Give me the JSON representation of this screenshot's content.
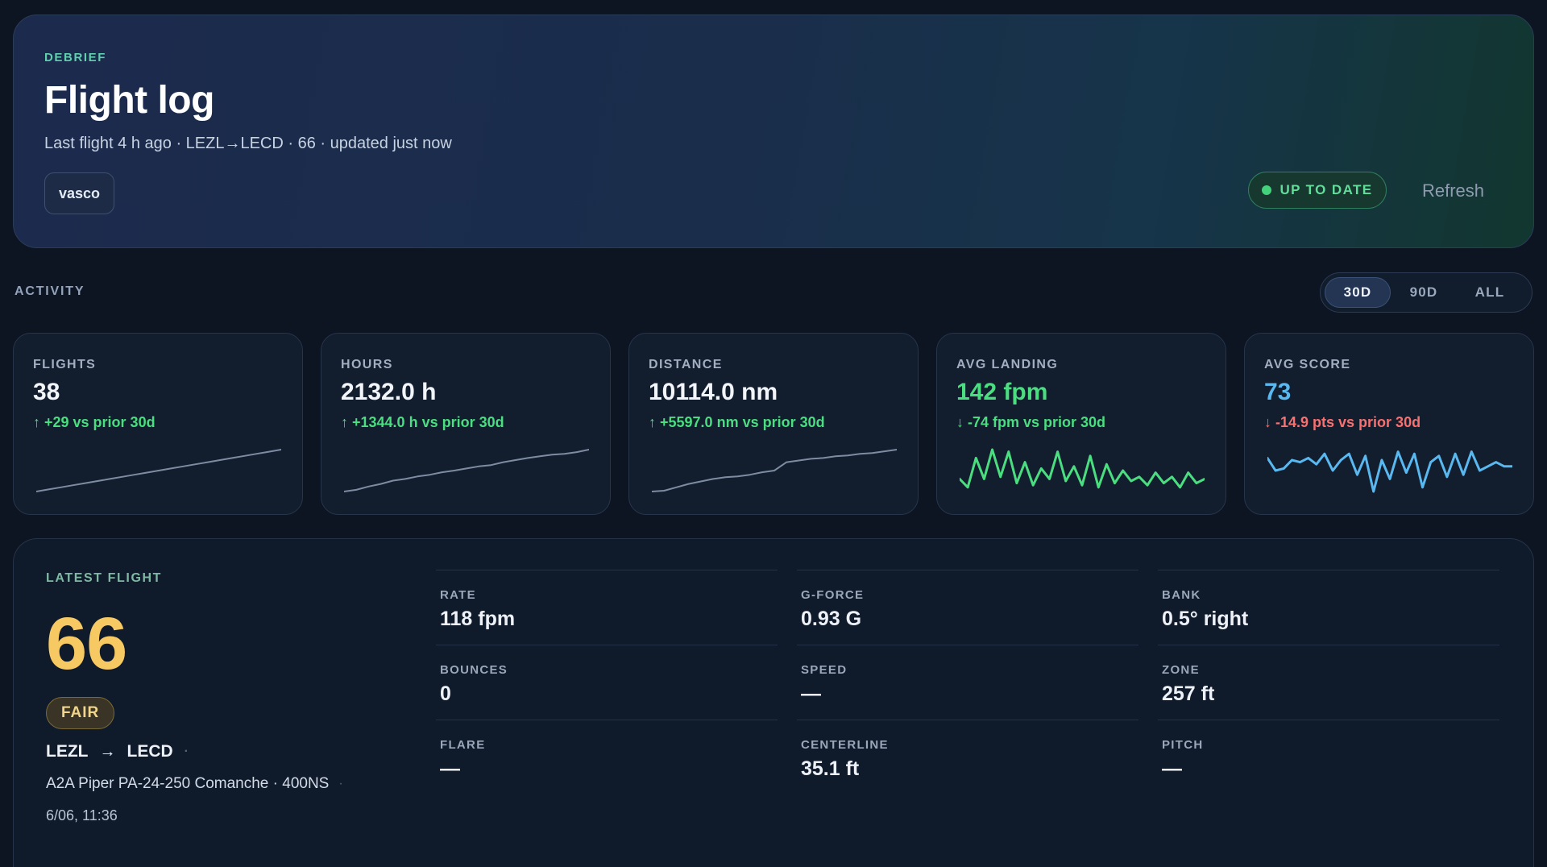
{
  "header": {
    "eyebrow": "DEBRIEF",
    "title": "Flight log",
    "subtitle": "Last flight 4 h ago · LEZL→LECD · 66 · updated just now",
    "user": "vasco",
    "status": "UP TO DATE",
    "refresh_label": "Refresh"
  },
  "activity": {
    "label": "ACTIVITY",
    "ranges": [
      "30D",
      "90D",
      "ALL"
    ],
    "active_range": "30D"
  },
  "stats": [
    {
      "label": "FLIGHTS",
      "value": "38",
      "delta": "↑ +29 vs prior 30d",
      "delta_color": "#4ade80",
      "value_color": "#f2f6fb",
      "spark_color": "#7e8ca3",
      "spark": [
        0.0,
        0.05,
        0.1,
        0.15,
        0.2,
        0.25,
        0.3,
        0.35,
        0.4,
        0.45,
        0.5,
        0.55,
        0.6,
        0.65,
        0.7,
        0.75,
        0.8,
        0.85,
        0.9,
        0.95,
        1.0
      ]
    },
    {
      "label": "HOURS",
      "value": "2132.0 h",
      "delta": "↑ +1344.0 h vs prior 30d",
      "delta_color": "#4ade80",
      "value_color": "#f2f6fb",
      "spark_color": "#7e8ca3",
      "spark": [
        0.0,
        0.04,
        0.12,
        0.18,
        0.26,
        0.3,
        0.36,
        0.4,
        0.46,
        0.5,
        0.55,
        0.6,
        0.63,
        0.7,
        0.75,
        0.8,
        0.84,
        0.88,
        0.9,
        0.94,
        1.0
      ]
    },
    {
      "label": "DISTANCE",
      "value": "10114.0 nm",
      "delta": "↑ +5597.0 nm vs prior 30d",
      "delta_color": "#4ade80",
      "value_color": "#f2f6fb",
      "spark_color": "#7e8ca3",
      "spark": [
        0.0,
        0.02,
        0.1,
        0.18,
        0.24,
        0.3,
        0.34,
        0.36,
        0.4,
        0.46,
        0.5,
        0.7,
        0.74,
        0.78,
        0.8,
        0.84,
        0.86,
        0.9,
        0.92,
        0.96,
        1.0
      ]
    },
    {
      "label": "AVG LANDING",
      "value": "142 fpm",
      "delta": "↓ -74 fpm vs prior 30d",
      "delta_color": "#4ade80",
      "value_color": "#4ade80",
      "spark_color": "#4ade80",
      "spark": [
        0.3,
        0.1,
        0.8,
        0.3,
        1.0,
        0.35,
        0.95,
        0.2,
        0.7,
        0.15,
        0.55,
        0.3,
        0.95,
        0.25,
        0.6,
        0.15,
        0.85,
        0.1,
        0.65,
        0.2,
        0.5,
        0.25,
        0.35,
        0.15,
        0.45,
        0.2,
        0.35,
        0.1,
        0.45,
        0.2,
        0.3
      ]
    },
    {
      "label": "AVG SCORE",
      "value": "73",
      "delta": "↓ -14.9 pts vs prior 30d",
      "delta_color": "#f87171",
      "value_color": "#5ab8f0",
      "spark_color": "#5ab8f0",
      "spark": [
        0.8,
        0.5,
        0.55,
        0.75,
        0.7,
        0.8,
        0.65,
        0.9,
        0.5,
        0.75,
        0.9,
        0.4,
        0.85,
        0.0,
        0.75,
        0.3,
        0.95,
        0.45,
        0.9,
        0.1,
        0.7,
        0.85,
        0.35,
        0.9,
        0.4,
        0.95,
        0.5,
        0.6,
        0.7,
        0.6,
        0.6
      ]
    }
  ],
  "latest": {
    "eyebrow": "LATEST FLIGHT",
    "score": "66",
    "grade": "FAIR",
    "origin": "LEZL",
    "arrow": "→",
    "destination": "LECD",
    "aircraft": "A2A Piper PA-24-250 Comanche · 400NS",
    "datetime": "6/06, 11:36",
    "metrics": [
      {
        "label": "RATE",
        "value": "118 fpm"
      },
      {
        "label": "G-FORCE",
        "value": "0.93 G"
      },
      {
        "label": "BANK",
        "value": "0.5° right"
      },
      {
        "label": "BOUNCES",
        "value": "0"
      },
      {
        "label": "SPEED",
        "value": "—"
      },
      {
        "label": "ZONE",
        "value": "257 ft"
      },
      {
        "label": "FLARE",
        "value": "—"
      },
      {
        "label": "CENTERLINE",
        "value": "35.1 ft"
      },
      {
        "label": "PITCH",
        "value": "—"
      }
    ]
  }
}
